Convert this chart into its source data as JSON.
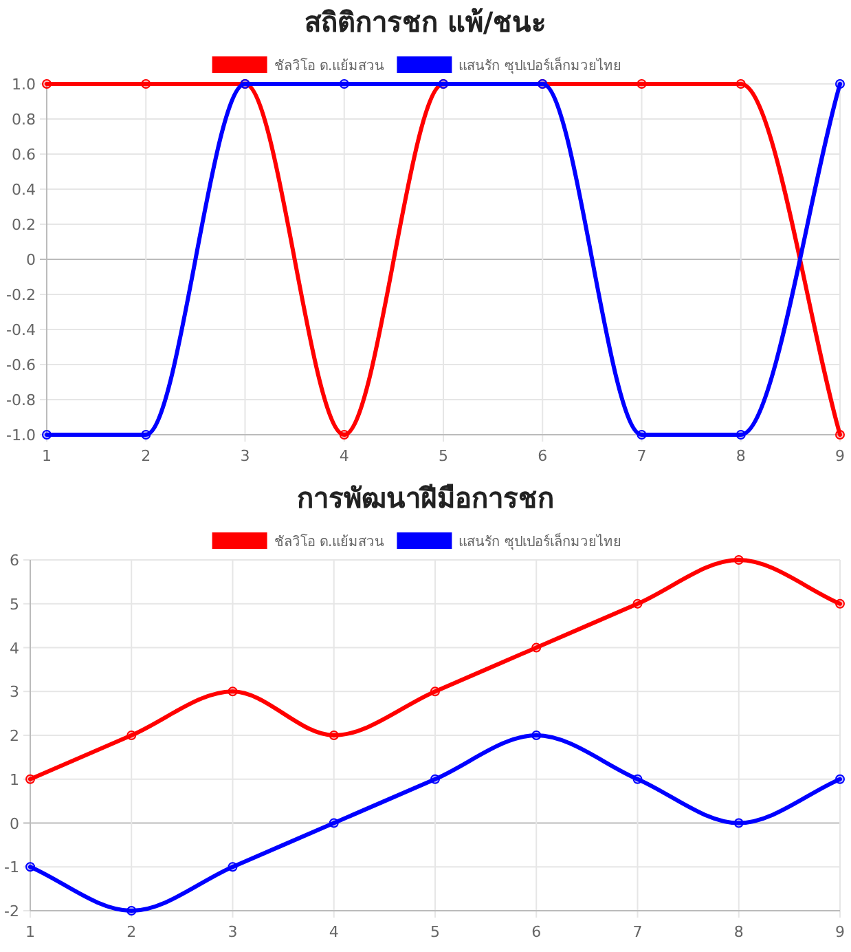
{
  "chart_data": [
    {
      "type": "line",
      "title": "สถิติการชก แพ้/ชนะ",
      "categories": [
        "1",
        "2",
        "3",
        "4",
        "5",
        "6",
        "7",
        "8",
        "9"
      ],
      "series": [
        {
          "name": "ชัลวิโอ ด.แย้มสวน",
          "color": "#ff0000",
          "values": [
            1,
            1,
            1,
            -1,
            1,
            1,
            1,
            1,
            -1
          ]
        },
        {
          "name": "แสนรัก ซุปเปอร์เล็กมวยไทย",
          "color": "#0000ff",
          "values": [
            -1,
            -1,
            1,
            1,
            1,
            1,
            -1,
            -1,
            1
          ]
        }
      ],
      "ylim": [
        -1,
        1
      ],
      "yticks": [
        {
          "value": -1,
          "label": "-1.0"
        },
        {
          "value": -0.8,
          "label": "-0.8"
        },
        {
          "value": -0.6,
          "label": "-0.6"
        },
        {
          "value": -0.4,
          "label": "-0.4"
        },
        {
          "value": -0.2,
          "label": "-0.2"
        },
        0,
        {
          "value": 0.2,
          "label": "0.2"
        },
        {
          "value": 0.4,
          "label": "0.4"
        },
        {
          "value": 0.6,
          "label": "0.6"
        },
        {
          "value": 0.8,
          "label": "0.8"
        },
        {
          "value": 1,
          "label": "1.0"
        }
      ],
      "grid": true,
      "legend": "top",
      "marker": "circle",
      "line_style": "solid"
    },
    {
      "type": "line",
      "title": "การพัฒนาฝีมือการชก",
      "categories": [
        "1",
        "2",
        "3",
        "4",
        "5",
        "6",
        "7",
        "8",
        "9"
      ],
      "series": [
        {
          "name": "ชัลวิโอ ด.แย้มสวน",
          "color": "#ff0000",
          "values": [
            1,
            2,
            3,
            2,
            3,
            4,
            5,
            6,
            5
          ]
        },
        {
          "name": "แสนรัก ซุปเปอร์เล็กมวยไทย",
          "color": "#0000ff",
          "values": [
            -1,
            -2,
            -1,
            0,
            1,
            2,
            1,
            0,
            1
          ]
        }
      ],
      "ylim": [
        -2,
        6
      ],
      "yticks": [
        -2,
        -1,
        0,
        1,
        2,
        3,
        4,
        5,
        6
      ],
      "grid": true,
      "legend": "top",
      "marker": "circle",
      "line_style": "solid"
    }
  ]
}
